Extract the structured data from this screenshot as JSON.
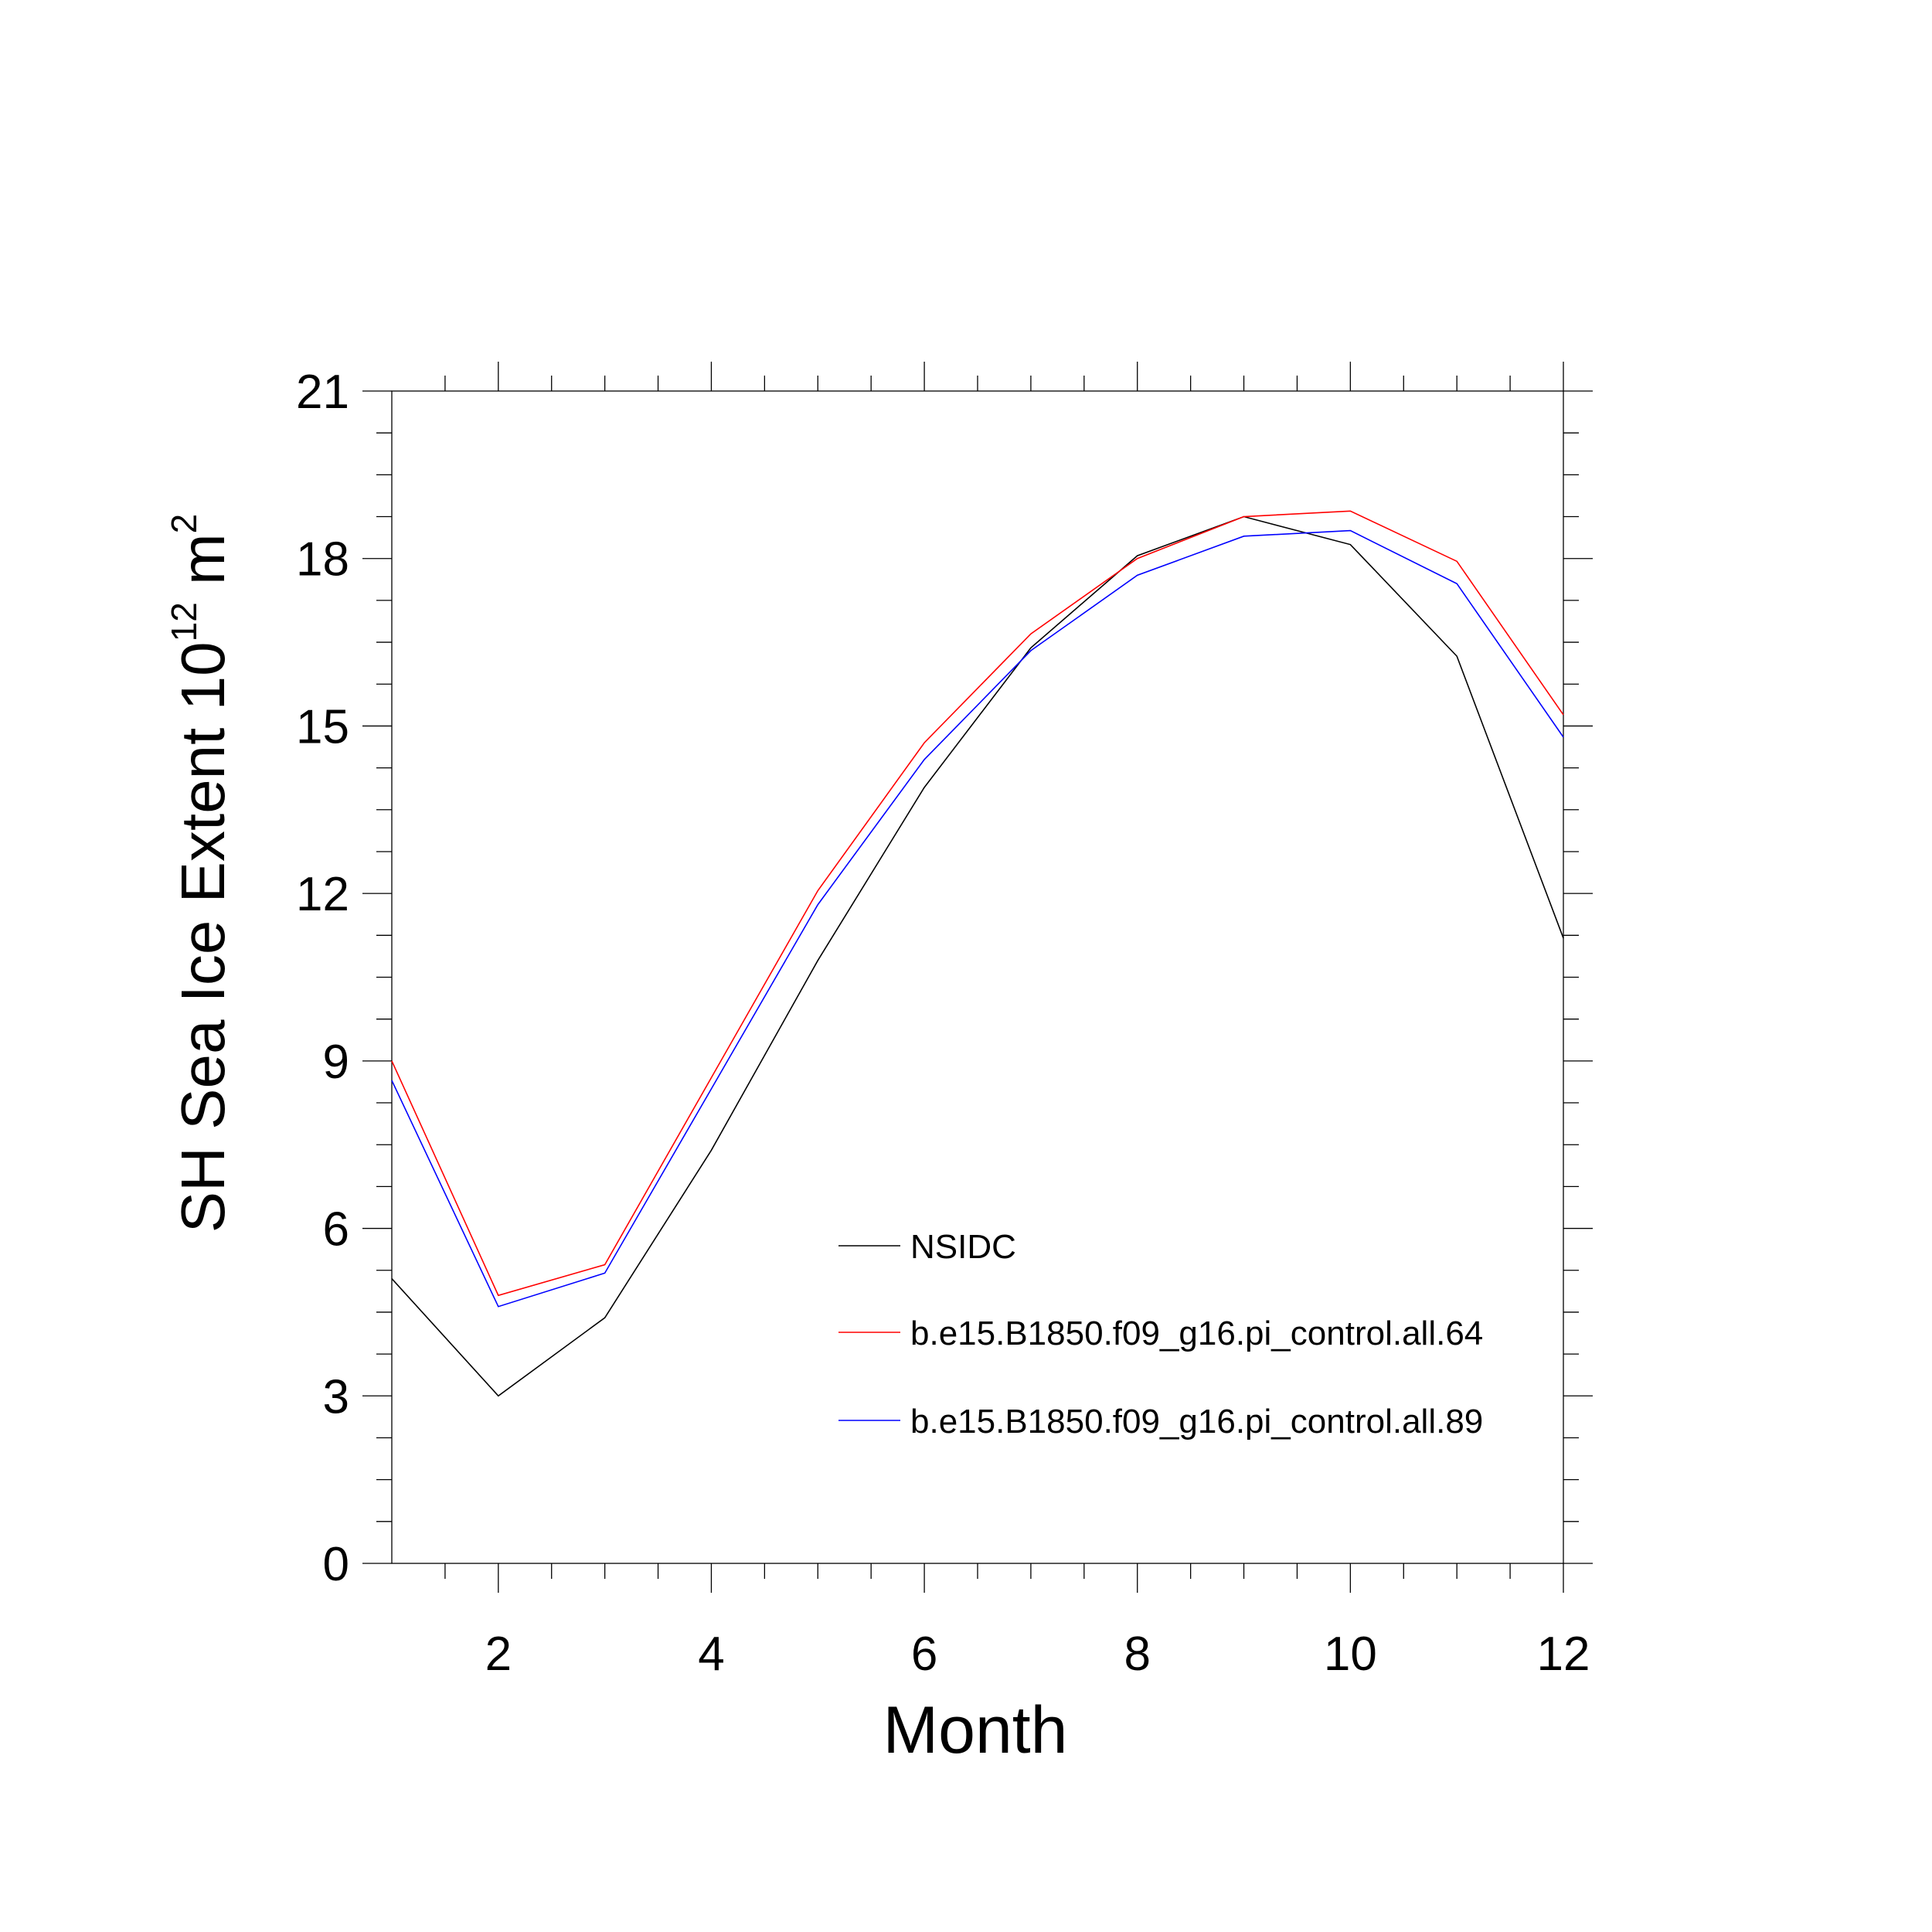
{
  "chart_data": {
    "type": "line",
    "title": "",
    "xlabel": "Month",
    "ylabel": {
      "main": "SH Sea Ice Extent 10",
      "exponent": "12",
      "unit": " m",
      "unit_exponent": "2"
    },
    "xlim": [
      1,
      12
    ],
    "ylim": [
      0,
      21
    ],
    "xticks": [
      2,
      4,
      6,
      8,
      10,
      12
    ],
    "yticks": [
      0,
      3,
      6,
      9,
      12,
      15,
      18,
      21
    ],
    "grid": false,
    "legend_position": "lower-right inside",
    "x": [
      1,
      2,
      3,
      4,
      5,
      6,
      7,
      8,
      9,
      10,
      11,
      12
    ],
    "series": [
      {
        "name": "NSIDC",
        "color": "#000000",
        "values": [
          5.1,
          3.0,
          4.4,
          7.4,
          10.8,
          13.9,
          16.4,
          18.05,
          18.75,
          18.25,
          16.25,
          11.2
        ]
      },
      {
        "name": "b.e15.B1850.f09_g16.pi_control.all.64",
        "color": "#ff0000",
        "values": [
          9.0,
          4.8,
          5.35,
          8.7,
          12.05,
          14.7,
          16.65,
          18.0,
          18.75,
          18.85,
          17.95,
          15.2
        ]
      },
      {
        "name": "b.e15.B1850.f09_g16.pi_control.all.89",
        "color": "#0000ff",
        "values": [
          8.65,
          4.6,
          5.2,
          8.5,
          11.8,
          14.4,
          16.35,
          17.7,
          18.4,
          18.5,
          17.55,
          14.8
        ]
      }
    ]
  }
}
